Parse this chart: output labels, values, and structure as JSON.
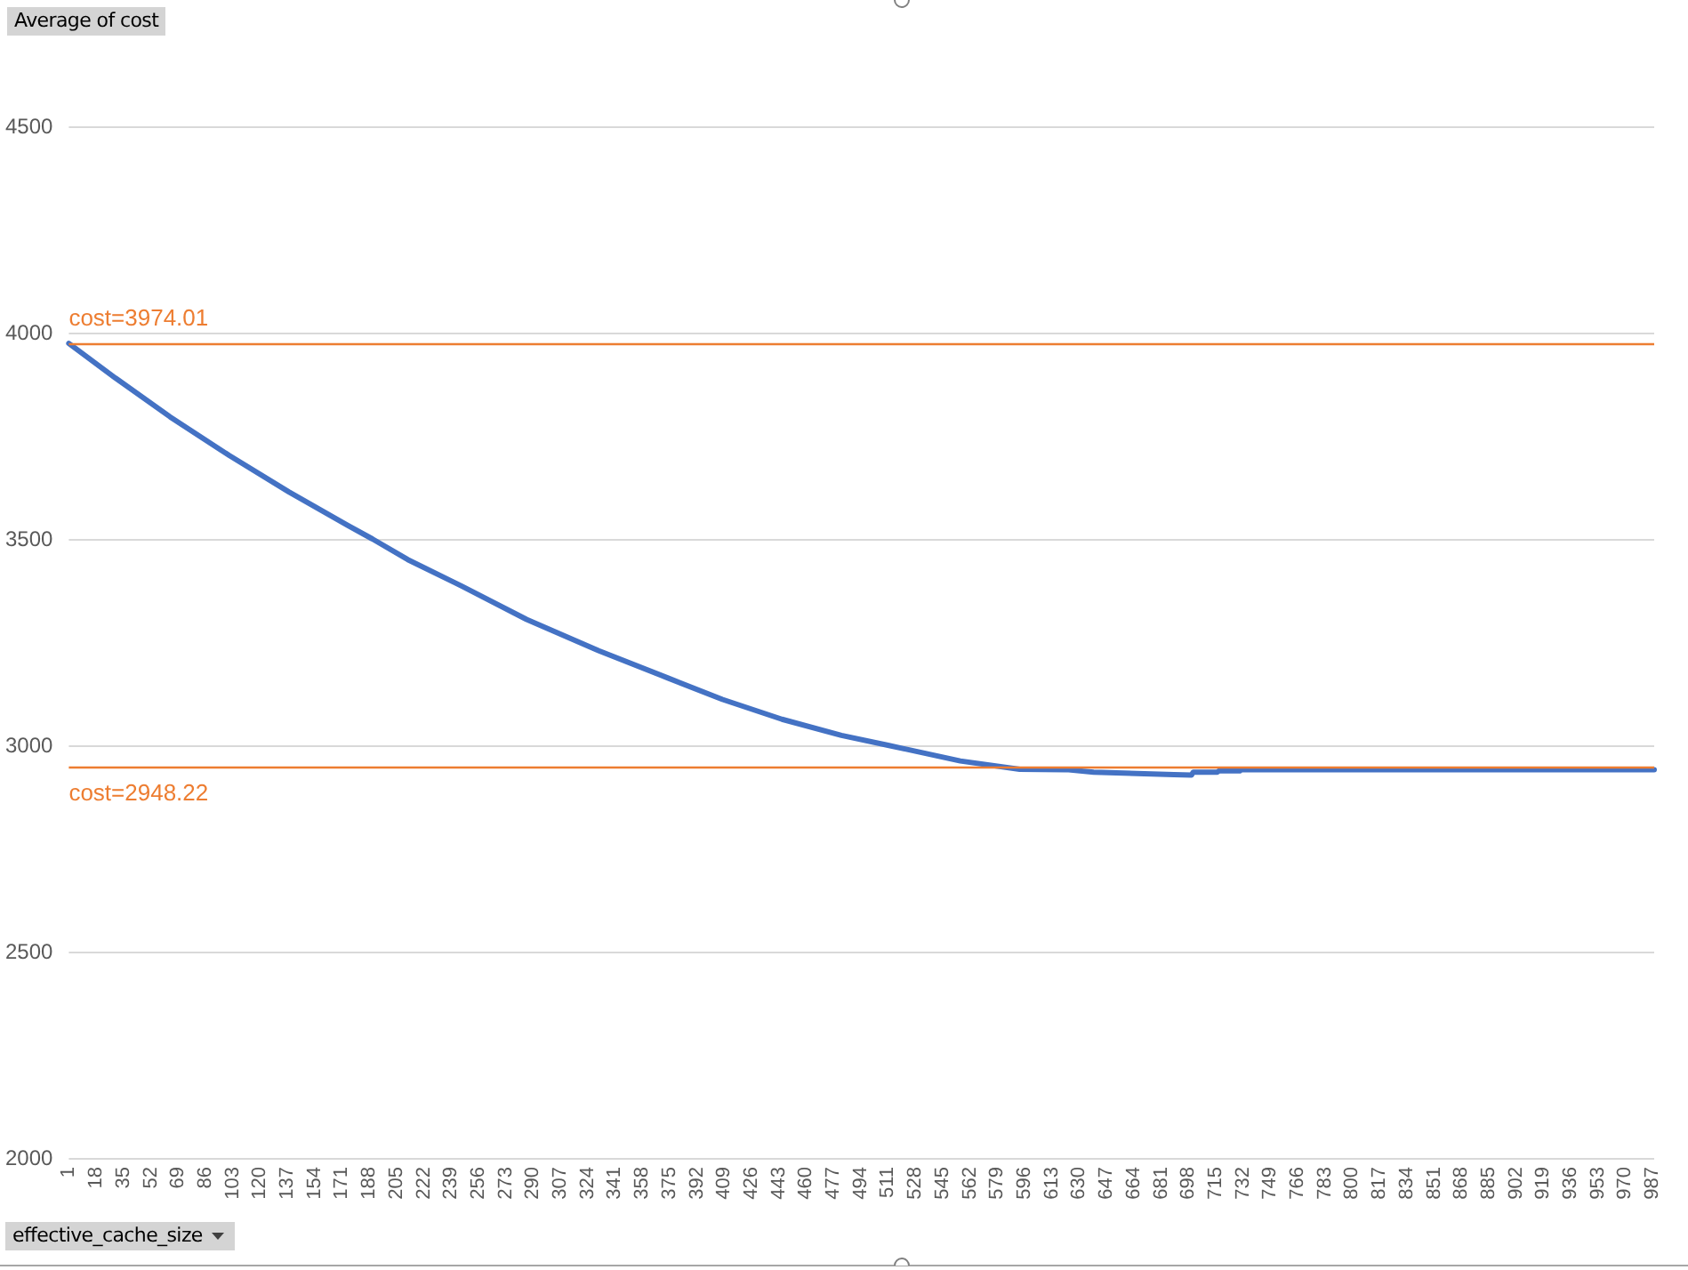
{
  "chart_data": {
    "type": "line",
    "ylabel": "Average of cost",
    "xlabel": "effective_cache_size",
    "x": [
      1,
      30,
      64,
      101,
      138,
      175,
      190,
      212,
      246,
      286,
      331,
      374,
      408,
      445,
      482,
      511,
      556,
      593,
      622,
      639,
      689,
      700,
      701,
      716,
      717,
      730,
      731,
      988
    ],
    "series": [
      {
        "color": "#4472c4",
        "values": [
          3974,
          3890,
          3796,
          3702,
          3614,
          3532,
          3500,
          3450,
          3385,
          3305,
          3229,
          3163,
          3111,
          3063,
          3024,
          3000,
          2962,
          2942,
          2941,
          2935,
          2929,
          2928,
          2935,
          2935,
          2938,
          2938,
          2941,
          2941
        ]
      }
    ],
    "xlim": [
      1,
      988
    ],
    "xticks": [
      1,
      18,
      35,
      52,
      69,
      86,
      103,
      120,
      137,
      154,
      171,
      188,
      205,
      222,
      239,
      256,
      273,
      290,
      307,
      324,
      341,
      358,
      375,
      392,
      409,
      426,
      443,
      460,
      477,
      494,
      511,
      528,
      545,
      562,
      579,
      596,
      613,
      630,
      647,
      664,
      681,
      698,
      715,
      732,
      749,
      766,
      783,
      800,
      817,
      834,
      851,
      868,
      885,
      902,
      919,
      936,
      953,
      970,
      987
    ],
    "ylim": [
      2000,
      4500
    ],
    "yticks": [
      2000,
      2500,
      3000,
      3500,
      4000,
      4500
    ],
    "grid": "y",
    "marker": "none",
    "line_style": "solid",
    "ref_lines": [
      {
        "axis": "y",
        "value": 3974.01,
        "label": "cost=3974.01",
        "color": "#ed7d31"
      },
      {
        "axis": "y",
        "value": 2948.22,
        "label": "cost=2948.22",
        "color": "#ed7d31"
      }
    ]
  }
}
